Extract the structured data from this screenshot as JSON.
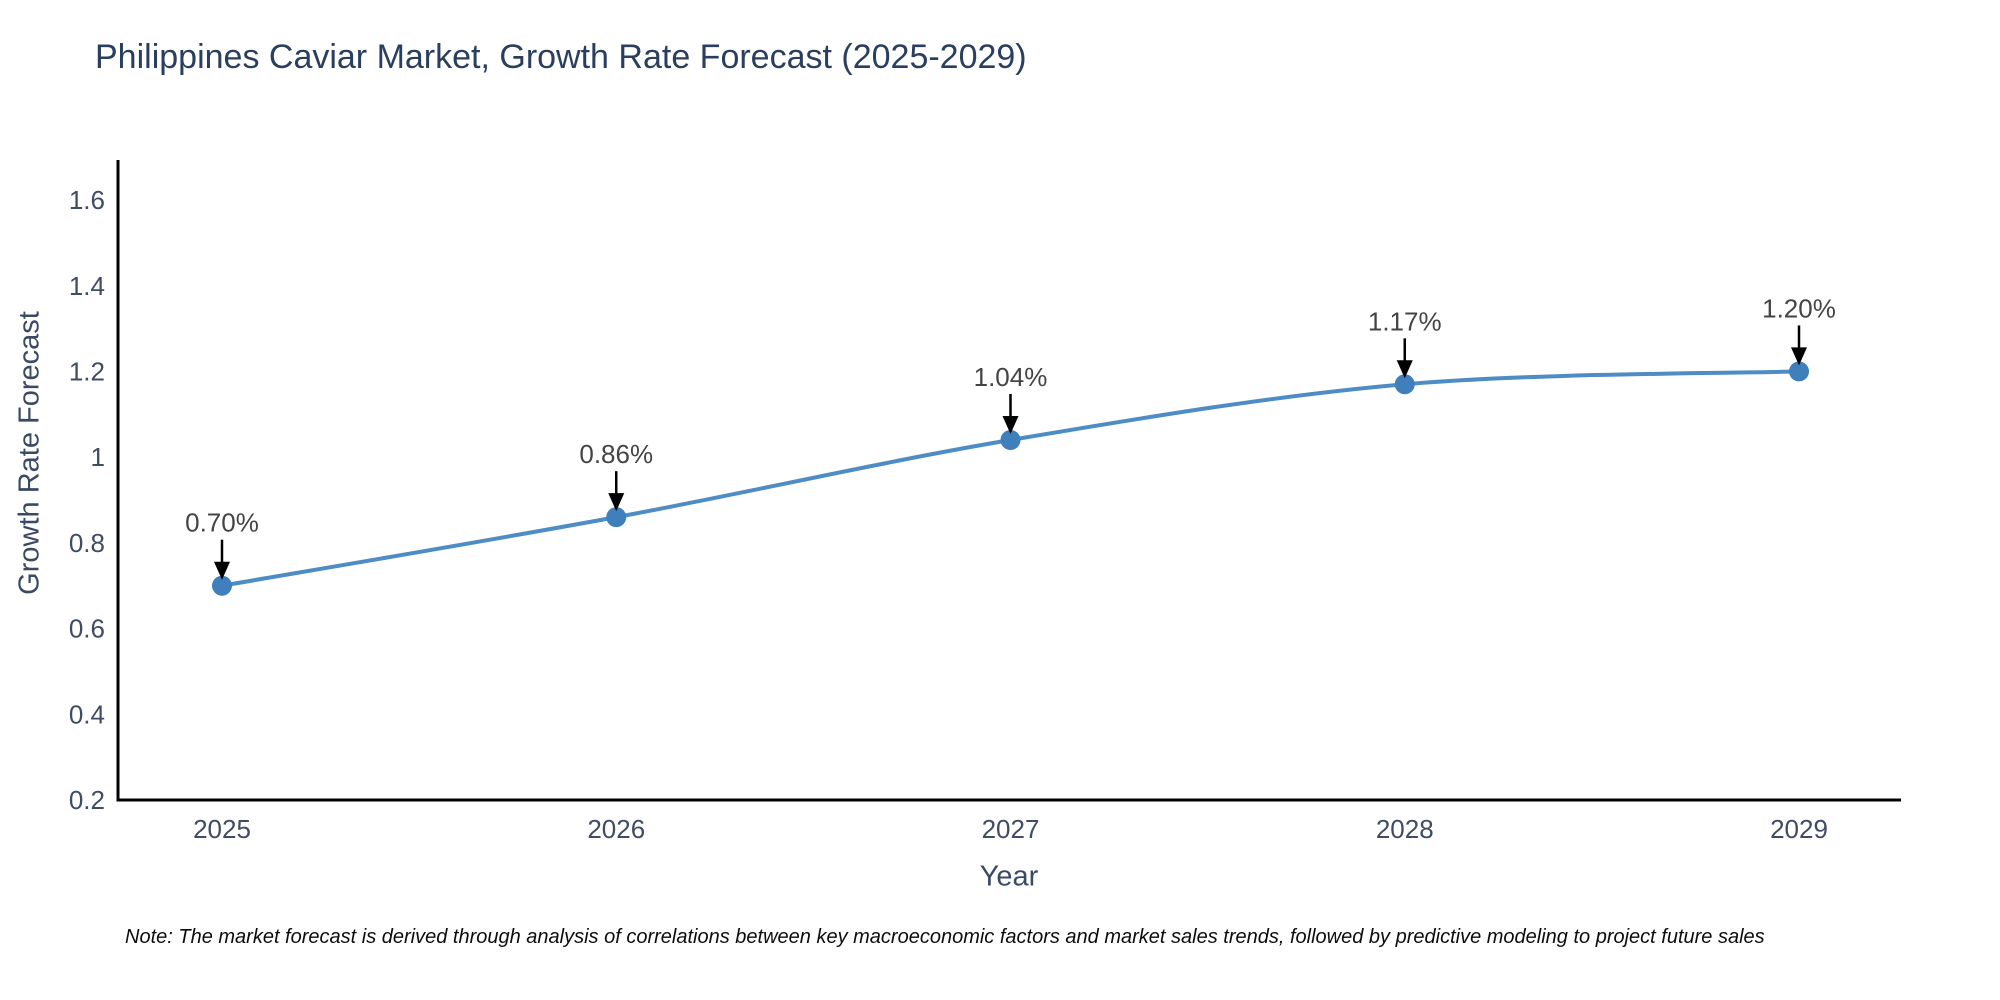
{
  "title": "Philippines Caviar Market, Growth Rate Forecast (2025-2029)",
  "note": "Note: The market forecast is derived through analysis of correlations between key macroeconomic factors and market sales trends, followed by predictive modeling to project future sales",
  "chart_data": {
    "type": "line",
    "line_shape": "spline",
    "title": "Philippines Caviar Market, Growth Rate Forecast (2025-2029)",
    "xlabel": "Year",
    "ylabel": "Growth Rate Forecast",
    "x_tick_labels": [
      "2025",
      "2026",
      "2027",
      "2028",
      "2029"
    ],
    "y_tick_labels": [
      "1.6",
      "1.4",
      "1.2",
      "1",
      "0.8",
      "0.6",
      "0.4",
      "0.2"
    ],
    "x": [
      2025,
      2026,
      2027,
      2028,
      2029
    ],
    "y": [
      0.7,
      0.86,
      1.04,
      1.17,
      1.2
    ],
    "point_labels": [
      "0.70%",
      "0.86%",
      "1.04%",
      "1.17%",
      "1.20%"
    ],
    "ylim": [
      0.2,
      1.693
    ],
    "grid": false,
    "legend": "none",
    "colors": {
      "line": "#4d8cc5",
      "marker": "#3e7fbc",
      "axis_line": "#000000",
      "tick_text": "#3f4c63",
      "annotation_text": "#444444",
      "annotation_arrow": "#000000",
      "title_text": "#2a3f5f"
    }
  }
}
